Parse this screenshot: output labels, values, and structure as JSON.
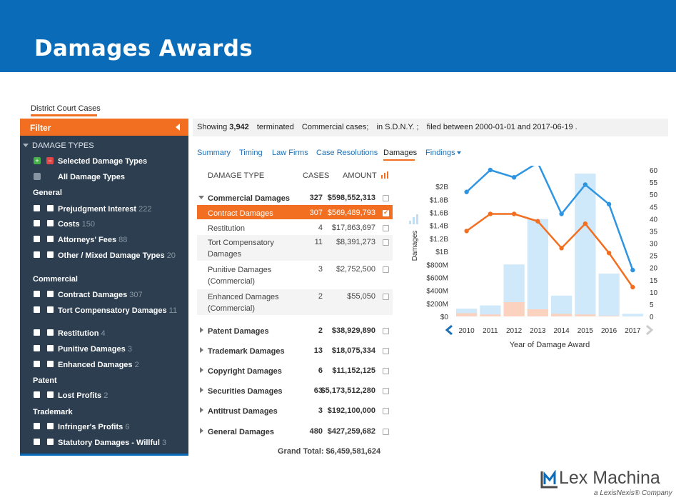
{
  "slide": {
    "title": "Damages Awards"
  },
  "section_tab": "District Court Cases",
  "sidebar": {
    "filter_label": "Filter",
    "damage_types_label": "DAMAGE TYPES",
    "selected_label": "Selected Damage Types",
    "all_label": "All Damage Types",
    "groups": [
      {
        "label": "General",
        "items": [
          {
            "label": "Prejudgment Interest",
            "count": "222"
          },
          {
            "label": "Costs",
            "count": "150"
          },
          {
            "label": "Attorneys' Fees",
            "count": "88"
          },
          {
            "label": "Other / Mixed Damage Types",
            "count": "20"
          }
        ]
      },
      {
        "label": "Commercial",
        "items": [
          {
            "label": "Contract Damages",
            "count": "307"
          },
          {
            "label": "Tort Compensatory Damages",
            "count": "11"
          },
          {
            "label": "Restitution",
            "count": "4"
          },
          {
            "label": "Punitive Damages",
            "count": "3"
          },
          {
            "label": "Enhanced Damages",
            "count": "2"
          }
        ]
      },
      {
        "label": "Patent",
        "items": [
          {
            "label": "Lost Profits",
            "count": "2"
          }
        ]
      },
      {
        "label": "Trademark",
        "items": [
          {
            "label": "Infringer's Profits",
            "count": "6"
          },
          {
            "label": "Statutory Damages - Willful",
            "count": "3"
          }
        ]
      }
    ]
  },
  "infobar": {
    "showing": "Showing",
    "count": "3,942",
    "status": "terminated",
    "type": "Commercial",
    "cases": "cases;",
    "court": "in S.D.N.Y. ;",
    "filed": "filed between 2000-01-01 and 2017-06-19",
    "end": "."
  },
  "tabs": [
    "Summary",
    "Timing",
    "Law Firms",
    "Case Resolutions",
    "Damages",
    "Findings"
  ],
  "table": {
    "headers": {
      "type": "DAMAGE TYPE",
      "cases": "CASES",
      "amount": "AMOUNT"
    },
    "rows": [
      {
        "name": "Commercial Damages",
        "cases": "327",
        "amount": "$598,552,313"
      },
      {
        "name": "Contract Damages",
        "cases": "307",
        "amount": "$569,489,793"
      },
      {
        "name": "Restitution",
        "cases": "4",
        "amount": "$17,863,697"
      },
      {
        "name": "Tort Compensatory Damages",
        "cases": "11",
        "amount": "$8,391,273"
      },
      {
        "name": "Punitive Damages (Commercial)",
        "cases": "3",
        "amount": "$2,752,500"
      },
      {
        "name": "Enhanced Damages (Commercial)",
        "cases": "2",
        "amount": "$55,050"
      },
      {
        "name": "Patent Damages",
        "cases": "2",
        "amount": "$38,929,890"
      },
      {
        "name": "Trademark Damages",
        "cases": "13",
        "amount": "$18,075,334"
      },
      {
        "name": "Copyright Damages",
        "cases": "6",
        "amount": "$11,152,125"
      },
      {
        "name": "Securities Damages",
        "cases": "63",
        "amount": "$5,173,512,280"
      },
      {
        "name": "Antitrust Damages",
        "cases": "3",
        "amount": "$192,100,000"
      },
      {
        "name": "General Damages",
        "cases": "480",
        "amount": "$427,259,682"
      }
    ],
    "grand_total": "Grand Total: $6,459,581,624"
  },
  "chart_data": {
    "type": "bar",
    "categories": [
      "2010",
      "2011",
      "2012",
      "2013",
      "2014",
      "2015",
      "2016",
      "2017"
    ],
    "xlabel": "Year of Damage Award",
    "ylabel": "Damages",
    "ylim": [
      0,
      2.2
    ],
    "y_ticks": [
      "$0",
      "$200M",
      "$400M",
      "$600M",
      "$800M",
      "$1B",
      "$1.2B",
      "$1.4B",
      "$1.6B",
      "$1.8B",
      "$2B"
    ],
    "y2_ticks": [
      "0",
      "5",
      "10",
      "15",
      "20",
      "25",
      "30",
      "35",
      "40",
      "45",
      "50",
      "55",
      "60"
    ],
    "series": [
      {
        "kind": "bar",
        "color": "#cfe8fa",
        "values": [
          0.12,
          0.17,
          0.8,
          1.5,
          0.32,
          2.2,
          0.66,
          0.04
        ]
      },
      {
        "kind": "bar",
        "color": "#fad2bf",
        "values": [
          0.05,
          0.03,
          0.22,
          0.11,
          0.04,
          0.03,
          0.01,
          0.0
        ]
      },
      {
        "kind": "line",
        "color": "#2f95e0",
        "axis": "right",
        "values": [
          51,
          60,
          57,
          63,
          42,
          54,
          46,
          19
        ]
      },
      {
        "kind": "line",
        "color": "#f26f21",
        "axis": "right",
        "values": [
          35,
          42,
          42,
          39,
          28,
          38,
          26,
          12
        ]
      }
    ]
  },
  "logo": {
    "name": "Lex Machina",
    "tagline": "a LexisNexis® Company"
  }
}
